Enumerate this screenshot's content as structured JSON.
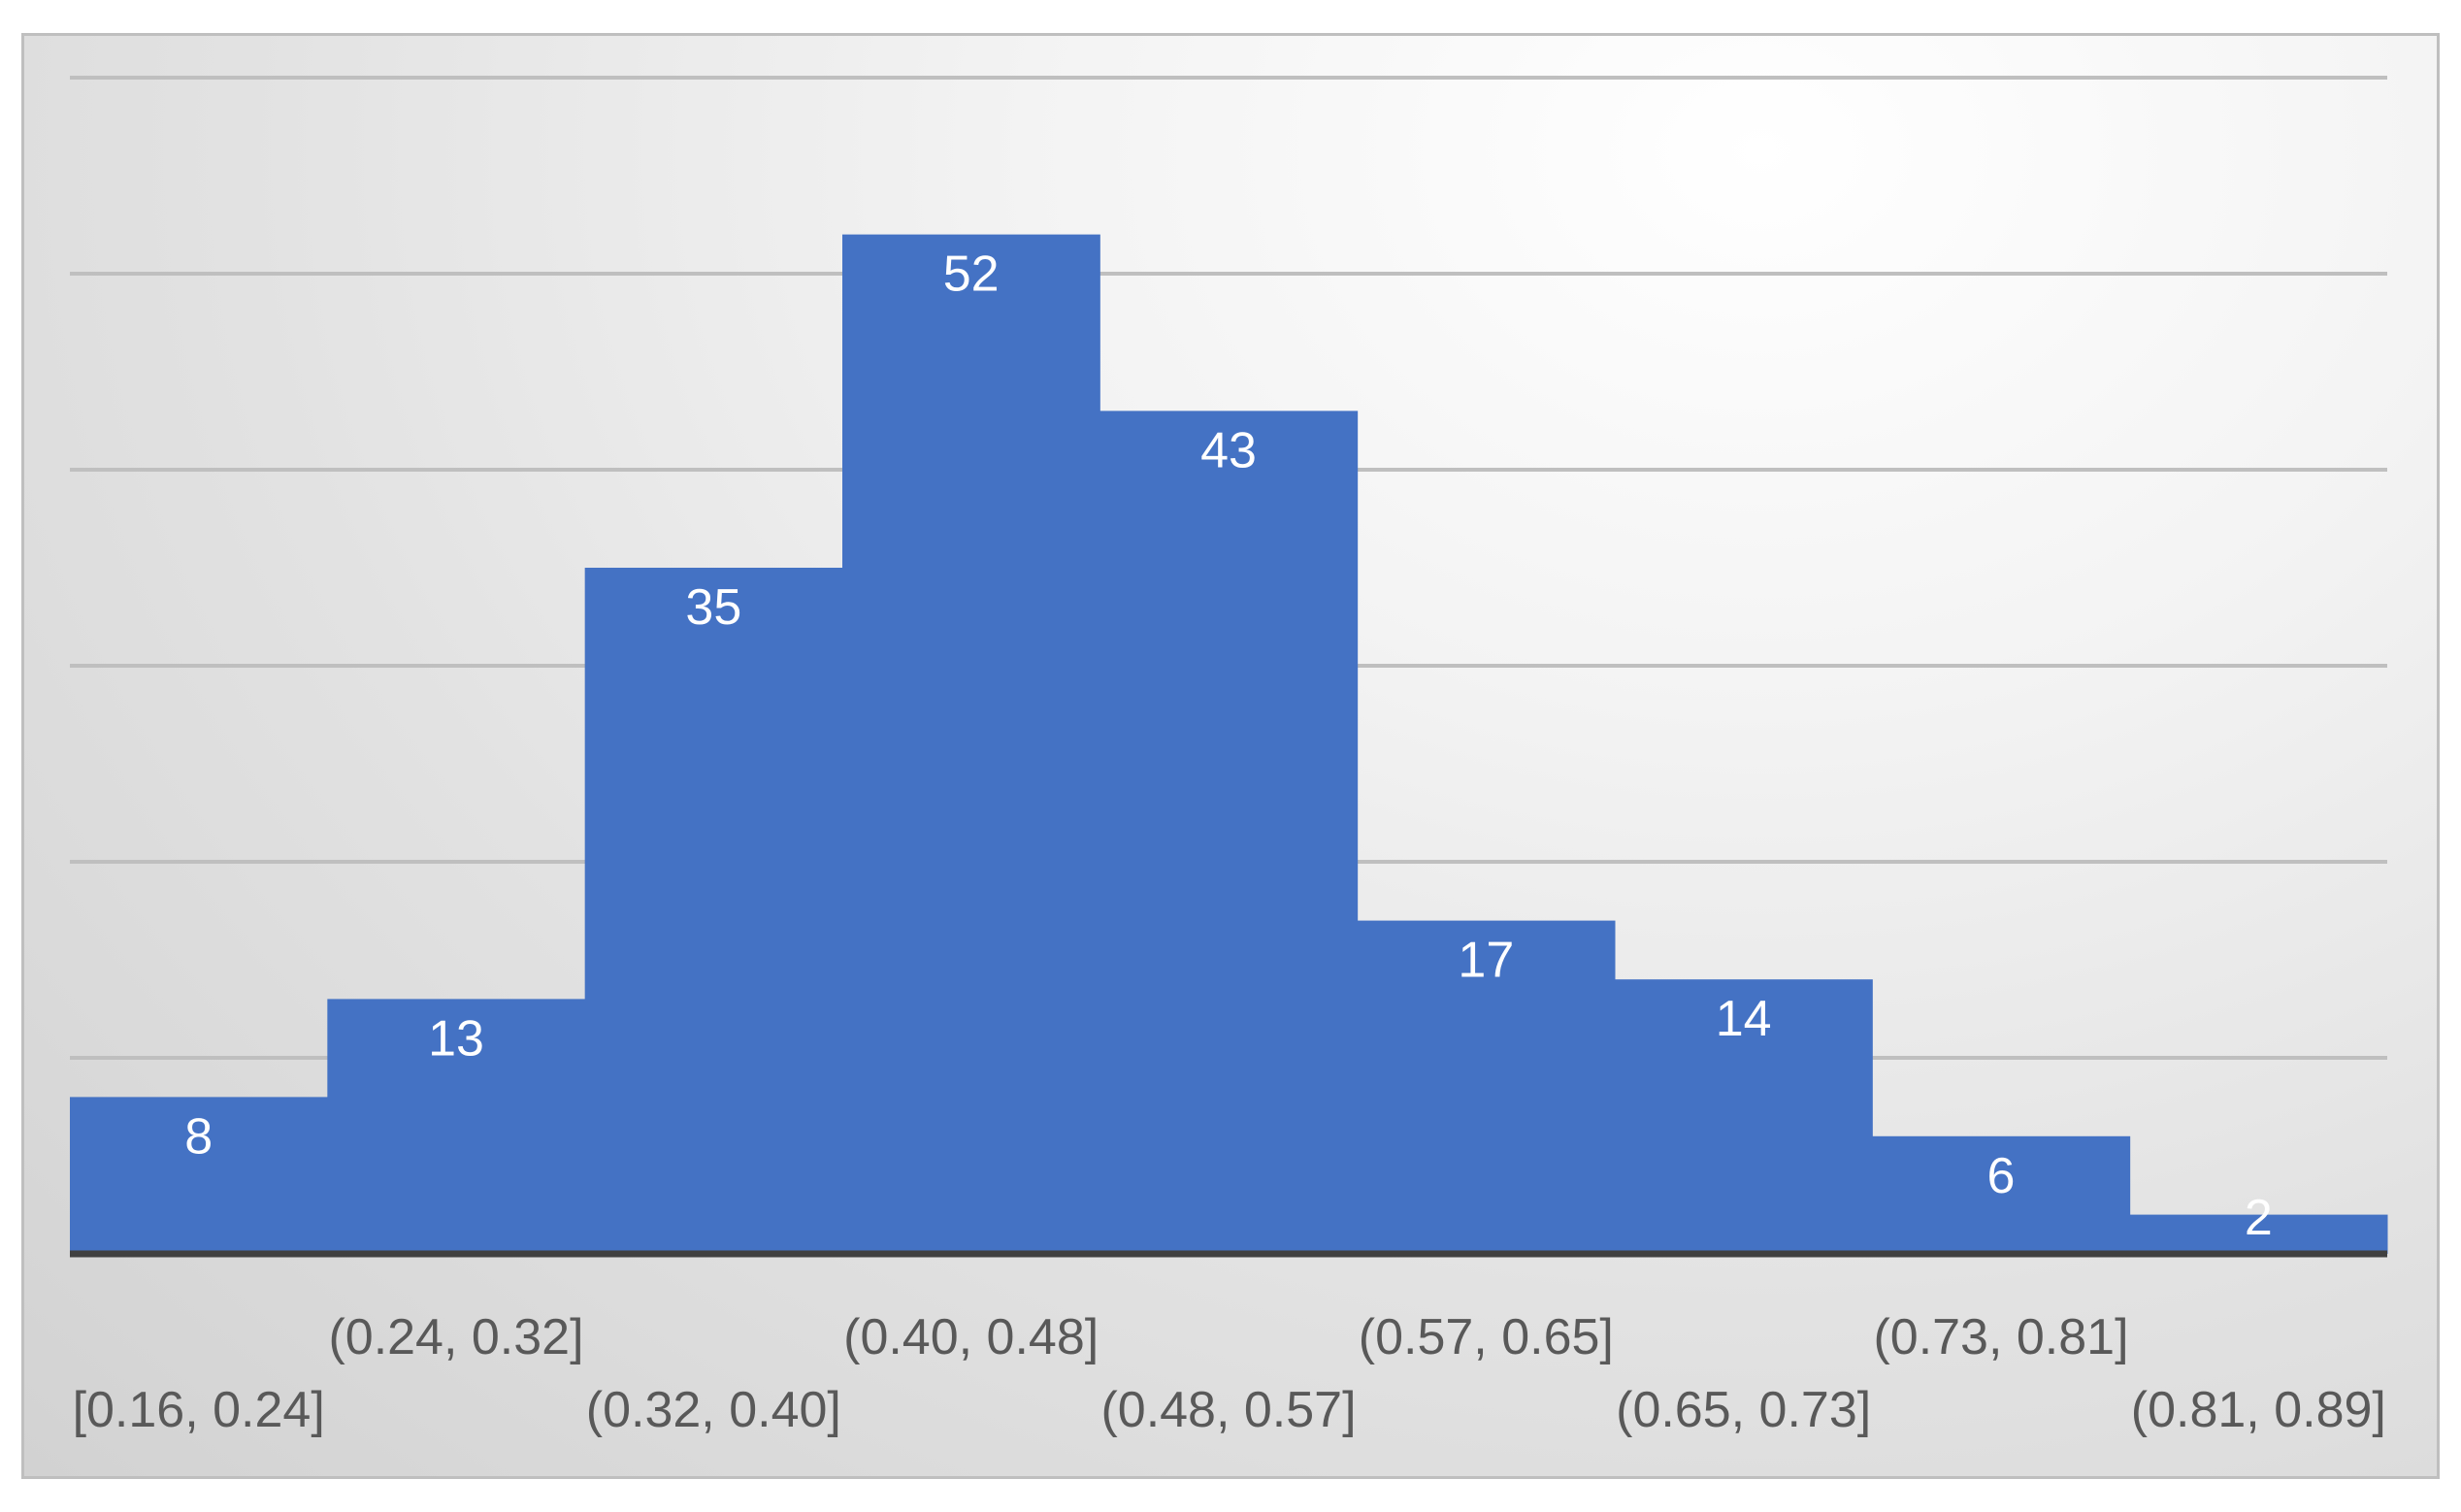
{
  "colors": {
    "bar": "#4472C4",
    "gridline": "#bfbfbf",
    "axis": "#404040",
    "label": "#ffffff",
    "tick": "#595959"
  },
  "chart_data": {
    "type": "bar",
    "subtype": "histogram",
    "title": "",
    "xlabel": "",
    "ylabel": "",
    "categories": [
      "[0.16, 0.24]",
      "(0.24, 0.32]",
      "(0.32, 0.40]",
      "(0.40, 0.48]",
      "(0.48, 0.57]",
      "(0.57, 0.65]",
      "(0.65, 0.73]",
      "(0.73, 0.81]",
      "(0.81, 0.89]"
    ],
    "values": [
      8,
      13,
      35,
      52,
      43,
      17,
      14,
      6,
      2
    ],
    "ylim": [
      0,
      60
    ],
    "gridlines": [
      10,
      20,
      30,
      40,
      50,
      60
    ],
    "grid": true,
    "legend": "none",
    "data_labels": true
  }
}
